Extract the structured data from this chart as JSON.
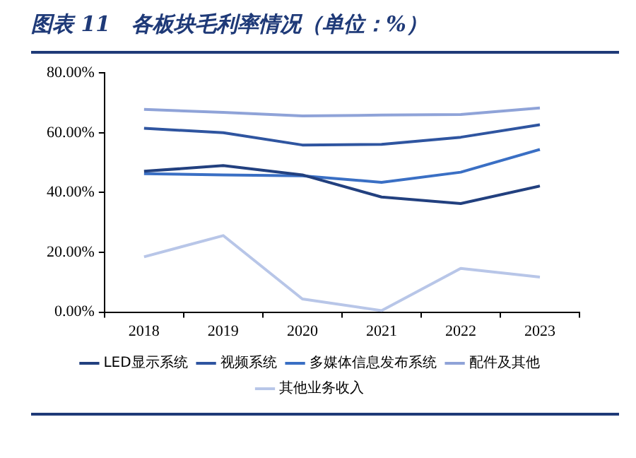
{
  "chart_data": {
    "type": "line",
    "title": "图表 11　各板块毛利率情况（单位：%）",
    "categories": [
      "2018",
      "2019",
      "2020",
      "2021",
      "2022",
      "2023"
    ],
    "series": [
      {
        "name": "LED显示系统",
        "color": "#22407f",
        "values": [
          47.1,
          49.0,
          45.9,
          38.5,
          36.3,
          42.2
        ]
      },
      {
        "name": "视频系统",
        "color": "#2f55a0",
        "values": [
          61.5,
          60.0,
          55.9,
          56.1,
          58.5,
          62.7
        ]
      },
      {
        "name": "多媒体信息发布系统",
        "color": "#3a6fc4",
        "values": [
          46.3,
          45.9,
          45.6,
          43.4,
          46.8,
          54.4
        ]
      },
      {
        "name": "配件及其他",
        "color": "#8fa3d8",
        "values": [
          67.8,
          66.8,
          65.6,
          65.9,
          66.1,
          68.3
        ]
      },
      {
        "name": "其他业务收入",
        "color": "#b8c6e8",
        "values": [
          18.5,
          25.6,
          4.4,
          0.5,
          14.6,
          11.7
        ]
      }
    ],
    "ylim": [
      0,
      80
    ],
    "yticks": [
      {
        "value": 0,
        "label": "0.00%"
      },
      {
        "value": 20,
        "label": "20.00%"
      },
      {
        "value": 40,
        "label": "40.00%"
      },
      {
        "value": 60,
        "label": "60.00%"
      },
      {
        "value": 80,
        "label": "80.00%"
      }
    ],
    "grid": false,
    "legend": "bottom",
    "marker": "none",
    "line_style": "solid"
  }
}
